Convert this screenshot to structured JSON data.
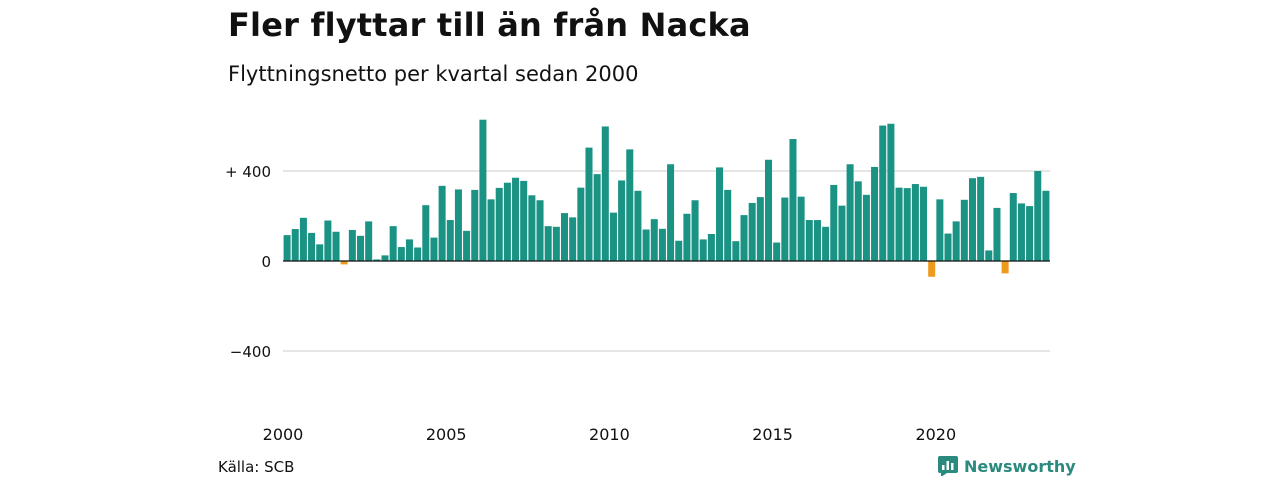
{
  "title": "Fler flyttar till än från Nacka",
  "subtitle": "Flyttningsnetto per kvartal sedan 2000",
  "source": "Källa: SCB",
  "brand": {
    "name": "Newsworthy",
    "icon": "newsworthy-logo-icon"
  },
  "colors": {
    "positive": "#1a9384",
    "negative": "#ee9a1c",
    "grid": "#dddddd",
    "brand": "#2b8a7e"
  },
  "chart_data": {
    "type": "bar",
    "title": "Fler flyttar till än från Nacka",
    "subtitle": "Flyttningsnetto per kvartal sedan 2000",
    "xlabel": "",
    "ylabel": "",
    "ylim": [
      -560,
      600
    ],
    "y_ticks": [
      {
        "value": 400,
        "label": "+ 400"
      },
      {
        "value": 0,
        "label": "0"
      },
      {
        "value": -400,
        "label": "−400"
      }
    ],
    "x_ticks": [
      "2000",
      "2005",
      "2010",
      "2015",
      "2020"
    ],
    "grid": true,
    "start": "2000 Q1",
    "frequency": "quarter",
    "values": [
      115,
      142,
      192,
      125,
      74,
      180,
      130,
      -15,
      138,
      112,
      176,
      7,
      25,
      155,
      62,
      96,
      60,
      248,
      104,
      334,
      182,
      318,
      134,
      316,
      628,
      274,
      325,
      348,
      370,
      356,
      292,
      270,
      155,
      152,
      213,
      194,
      326,
      504,
      386,
      598,
      215,
      358,
      496,
      312,
      140,
      186,
      143,
      430,
      90,
      210,
      270,
      96,
      120,
      416,
      316,
      88,
      204,
      258,
      284,
      450,
      82,
      282,
      542,
      286,
      182,
      182,
      152,
      338,
      246,
      430,
      354,
      294,
      418,
      602,
      610,
      326,
      324,
      342,
      330,
      -70,
      274,
      122,
      176,
      272,
      368,
      374,
      47,
      236,
      -55,
      302,
      256,
      244,
      400,
      312
    ]
  }
}
